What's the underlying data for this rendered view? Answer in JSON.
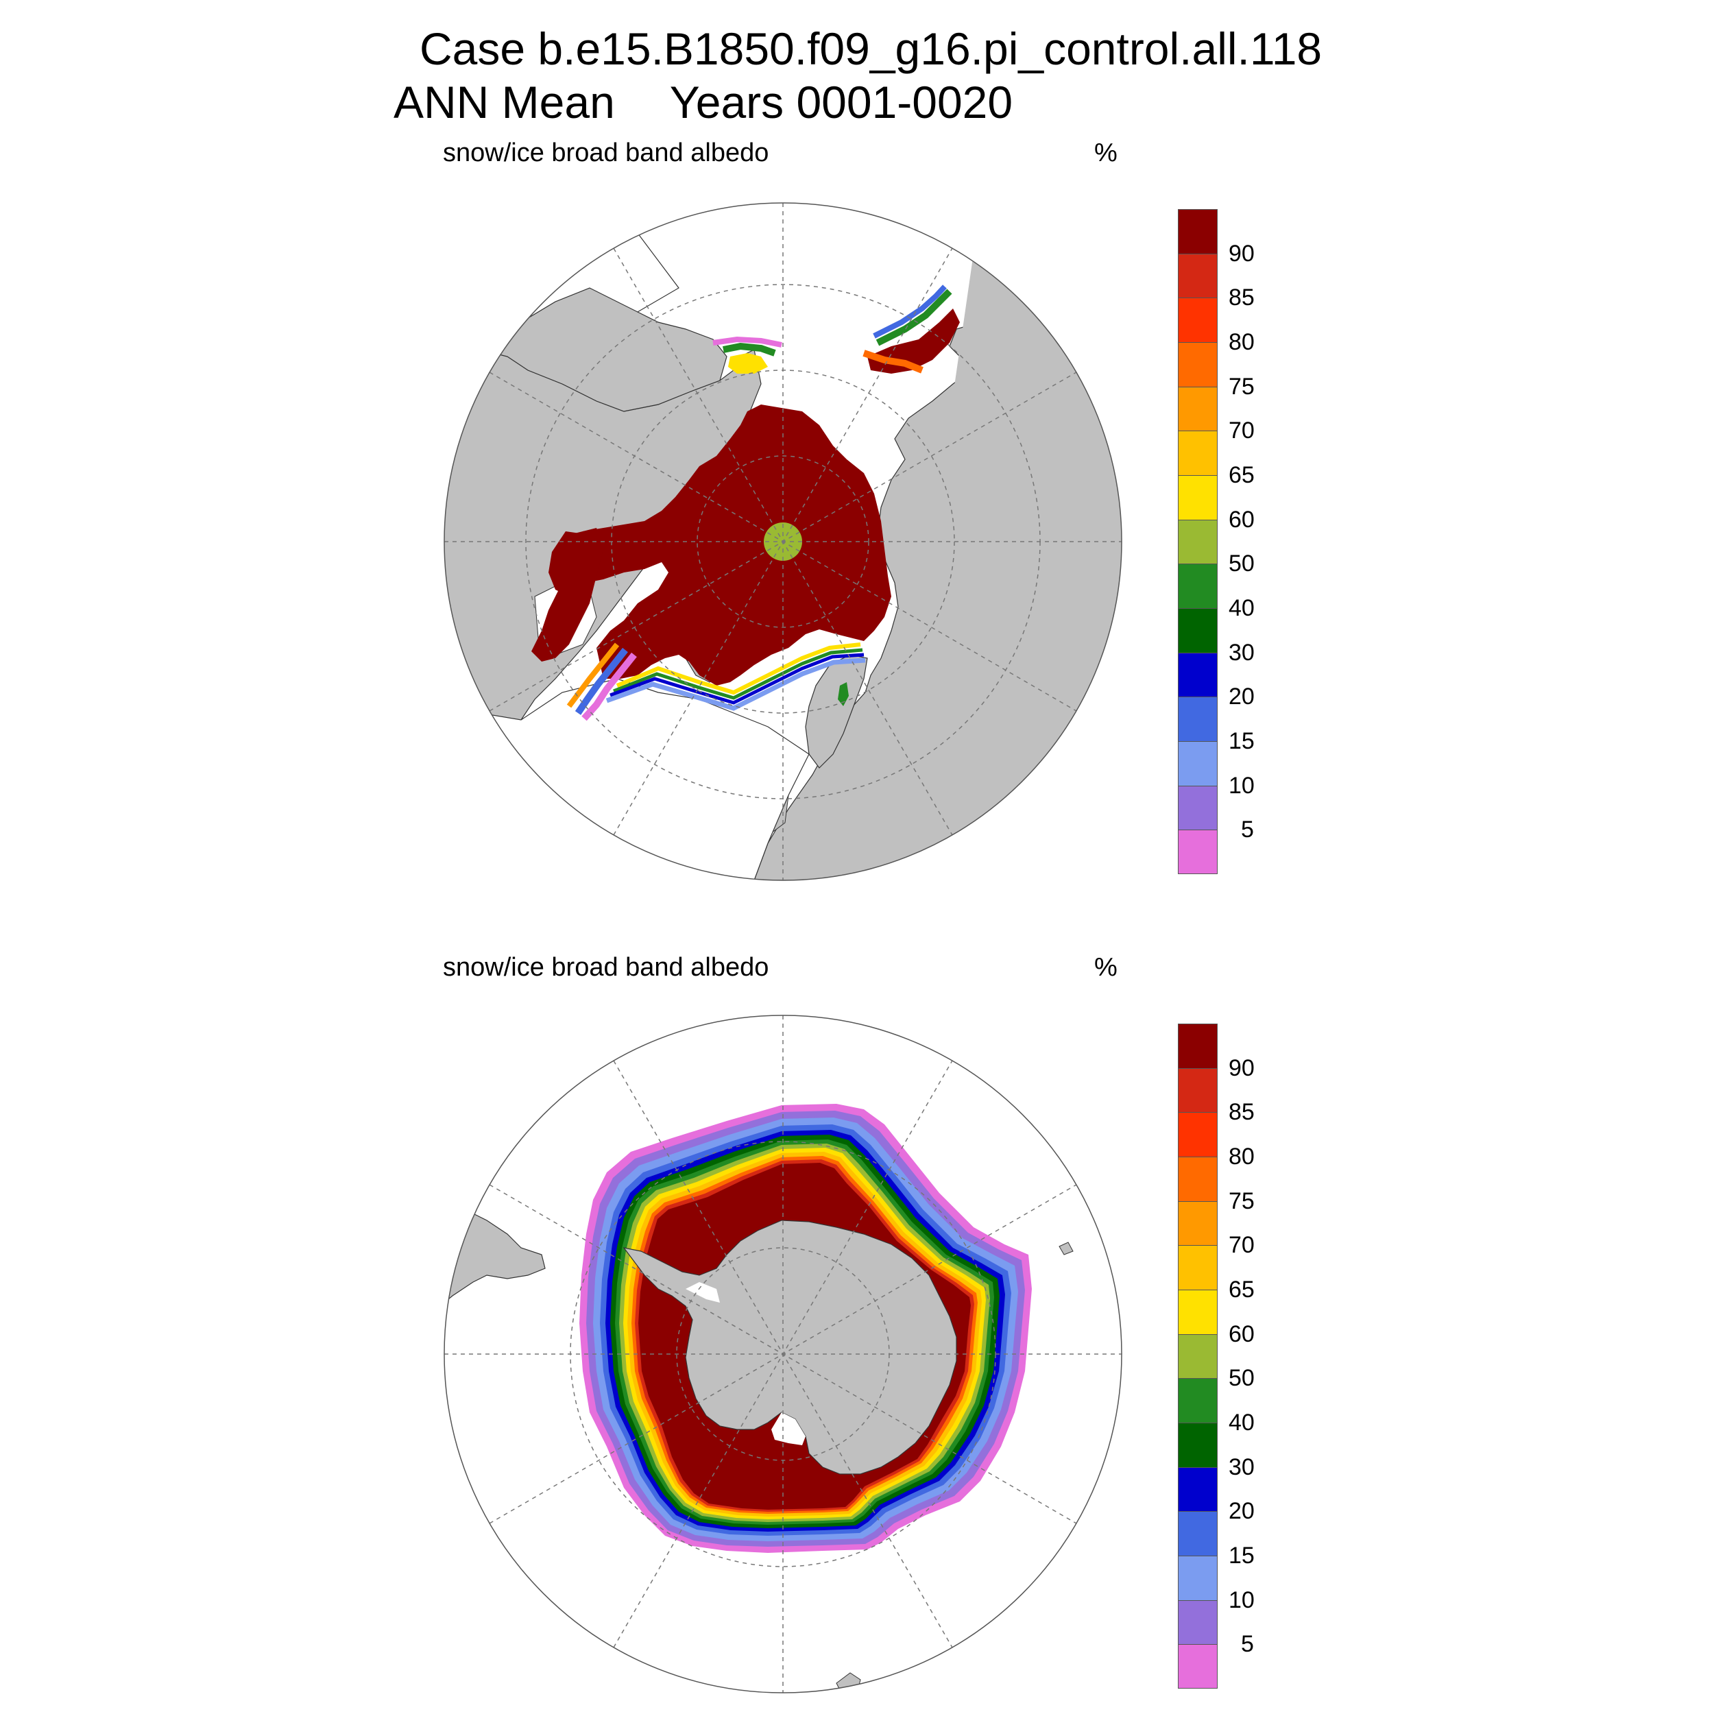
{
  "header": {
    "case_line": "Case b.e15.B1850.f09_g16.pi_control.all.118",
    "season": "ANN Mean",
    "years": "Years 0001-0020"
  },
  "panels": [
    {
      "id": "north",
      "hemisphere": "Northern",
      "variable": "snow/ice broad band albedo",
      "units": "%"
    },
    {
      "id": "south",
      "hemisphere": "Southern",
      "variable": "snow/ice broad band albedo",
      "units": "%"
    }
  ],
  "colorbar": {
    "labels": [
      "5",
      "10",
      "15",
      "20",
      "30",
      "40",
      "50",
      "60",
      "65",
      "70",
      "75",
      "80",
      "85",
      "90"
    ],
    "colors": [
      "#e66fdc",
      "#9370db",
      "#7b9cf0",
      "#4169e1",
      "#0000cd",
      "#006400",
      "#228b22",
      "#9aba33",
      "#ffe100",
      "#ffc100",
      "#ff9900",
      "#ff6a00",
      "#ff3300",
      "#d42814",
      "#8b0000"
    ]
  },
  "map_colors": {
    "land": "#c0c0c0",
    "ocean": "#ffffff",
    "ice": "#8b0000",
    "pole_hole": "#9aba33"
  }
}
